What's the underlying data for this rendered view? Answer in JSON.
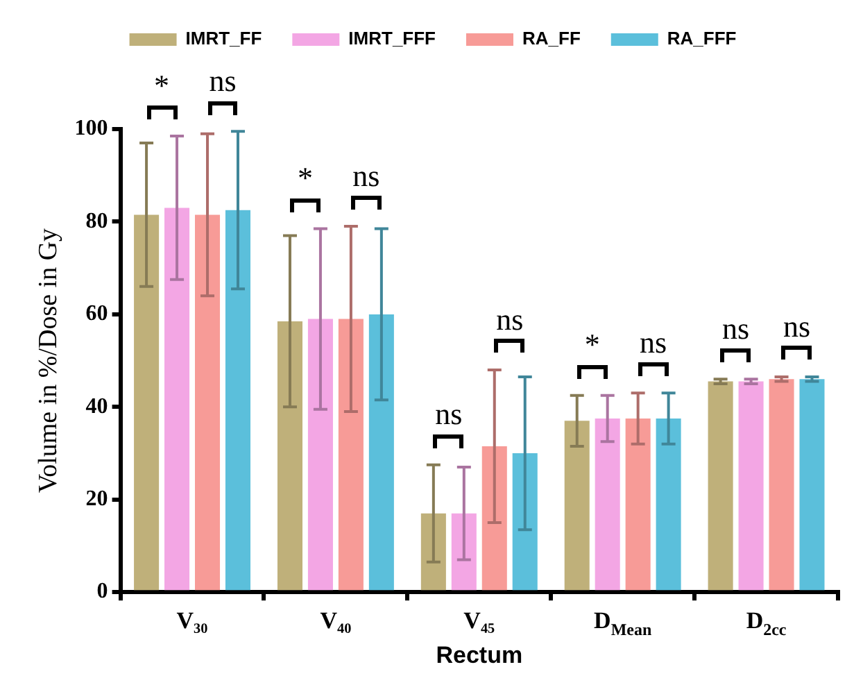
{
  "chart_data": {
    "type": "bar",
    "xlabel": "Rectum",
    "ylabel": "Volume in %/Dose in Gy",
    "categories": [
      "V₃₀",
      "V₄₀",
      "V₄₅",
      "D$_{Mean}$",
      "D$_{2cc}$"
    ],
    "series": [
      {
        "name": "IMRT_FF",
        "color": "#bfb07a",
        "values": [
          81.5,
          58.5,
          17,
          37,
          45.5
        ],
        "errors": [
          15.5,
          18.5,
          10.5,
          5.5,
          0.5
        ]
      },
      {
        "name": "IMRT_FFF",
        "color": "#f3a6e4",
        "values": [
          83,
          59,
          17,
          37.5,
          45.5
        ],
        "errors": [
          15.5,
          19.5,
          10,
          5,
          0.5
        ]
      },
      {
        "name": "RA_FF",
        "color": "#f79b97",
        "values": [
          81.5,
          59,
          31.5,
          37.5,
          46
        ],
        "errors": [
          17.5,
          20,
          16.5,
          5.5,
          0.5
        ]
      },
      {
        "name": "RA_FFF",
        "color": "#5bbfdb",
        "values": [
          82.5,
          60,
          30,
          37.5,
          46
        ],
        "errors": [
          17,
          18.5,
          16.5,
          5.5,
          0.5
        ]
      }
    ],
    "ylim": [
      0,
      100
    ],
    "yticks": [
      0,
      20,
      40,
      60,
      80,
      100
    ],
    "grid": false,
    "legend": "top",
    "annotations": [
      "*",
      "ns",
      "*",
      "ns",
      "ns",
      "ns",
      "*",
      "ns",
      "ns",
      "ns"
    ]
  }
}
